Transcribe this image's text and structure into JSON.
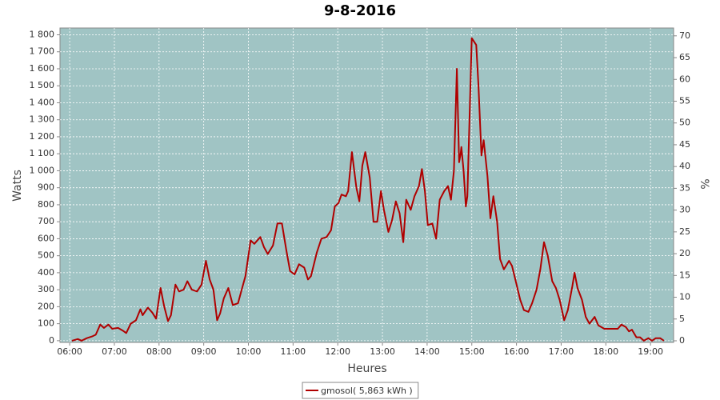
{
  "chart_data": {
    "type": "line",
    "title": "9-8-2016",
    "x_label": "Heures",
    "y_label": "Watts",
    "y2_label": "%",
    "xlim": [
      "05:47",
      "19:31"
    ],
    "xticks": [
      "06:00",
      "07:00",
      "08:00",
      "09:00",
      "10:00",
      "11:00",
      "12:00",
      "13:00",
      "14:00",
      "15:00",
      "16:00",
      "17:00",
      "18:00",
      "19:00"
    ],
    "ylim": [
      -10,
      1840
    ],
    "yticks": [
      0,
      100,
      200,
      300,
      400,
      500,
      600,
      700,
      800,
      900,
      {
        "value": 1000,
        "label": "1 000"
      },
      {
        "value": 1100,
        "label": "1 100"
      },
      {
        "value": 1200,
        "label": "1 200"
      },
      {
        "value": 1300,
        "label": "1 300"
      },
      {
        "value": 1400,
        "label": "1 400"
      },
      {
        "value": 1500,
        "label": "1 500"
      },
      {
        "value": 1600,
        "label": "1 600"
      },
      {
        "value": 1700,
        "label": "1 700"
      },
      {
        "value": 1800,
        "label": "1 800"
      }
    ],
    "y2lim": [
      -0.37,
      71.8
    ],
    "y2ticks": [
      0,
      5,
      10,
      15,
      20,
      25,
      30,
      35,
      40,
      45,
      50,
      55,
      60,
      65,
      70
    ],
    "grid": true,
    "background": "#a0c4c4",
    "legend": "bottom",
    "x": [
      "06:03",
      "06:11",
      "06:16",
      "06:23",
      "06:30",
      "06:35",
      "06:41",
      "06:46",
      "06:52",
      "06:57",
      "07:05",
      "07:11",
      "07:16",
      "07:22",
      "07:29",
      "07:35",
      "07:38",
      "07:45",
      "07:51",
      "07:56",
      "08:02",
      "08:07",
      "08:12",
      "08:16",
      "08:22",
      "08:27",
      "08:33",
      "08:38",
      "08:44",
      "08:51",
      "08:57",
      "09:03",
      "09:08",
      "09:13",
      "09:18",
      "09:22",
      "09:27",
      "09:33",
      "09:39",
      "09:46",
      "09:51",
      "09:56",
      "10:03",
      "10:08",
      "10:16",
      "10:21",
      "10:26",
      "10:33",
      "10:39",
      "10:45",
      "10:51",
      "10:56",
      "11:02",
      "11:08",
      "11:15",
      "11:20",
      "11:24",
      "11:32",
      "11:38",
      "11:45",
      "11:51",
      "11:56",
      "12:01",
      "12:05",
      "12:11",
      "12:14",
      "12:19",
      "12:25",
      "12:29",
      "12:33",
      "12:37",
      "12:43",
      "12:48",
      "12:53",
      "12:58",
      "13:02",
      "13:08",
      "13:13",
      "13:18",
      "13:23",
      "13:28",
      "13:32",
      "13:38",
      "13:43",
      "13:49",
      "13:53",
      "13:57",
      "14:01",
      "14:07",
      "14:12",
      "14:17",
      "14:23",
      "14:28",
      "14:32",
      "14:36",
      "14:40",
      "14:43",
      "14:45",
      "14:46",
      "14:49",
      "14:52",
      "14:54",
      "15:00",
      "15:06",
      "15:09",
      "15:13",
      "15:16",
      "15:21",
      "15:25",
      "15:29",
      "15:34",
      "15:38",
      "15:43",
      "15:50",
      "15:54",
      "15:59",
      "16:05",
      "16:10",
      "16:16",
      "16:21",
      "16:27",
      "16:32",
      "16:37",
      "16:42",
      "16:48",
      "16:53",
      "16:58",
      "17:04",
      "17:09",
      "17:15",
      "17:18",
      "17:22",
      "17:28",
      "17:33",
      "17:38",
      "17:45",
      "17:50",
      "17:58",
      "18:08",
      "18:16",
      "18:21",
      "18:27",
      "18:31",
      "18:35",
      "18:41",
      "18:46",
      "18:51",
      "18:57",
      "19:02",
      "19:07",
      "19:13",
      "19:18"
    ],
    "series": [
      {
        "name": "gmosol( 5,863 kWh )",
        "color": "#b00000",
        "values": [
          0,
          10,
          0,
          15,
          25,
          35,
          95,
          75,
          95,
          70,
          75,
          60,
          45,
          100,
          120,
          185,
          150,
          195,
          165,
          130,
          310,
          200,
          115,
          150,
          330,
          290,
          300,
          350,
          300,
          290,
          330,
          470,
          360,
          300,
          120,
          160,
          250,
          310,
          210,
          220,
          300,
          380,
          590,
          570,
          610,
          550,
          510,
          560,
          690,
          690,
          530,
          410,
          390,
          450,
          430,
          360,
          380,
          520,
          600,
          610,
          650,
          790,
          810,
          860,
          850,
          880,
          1110,
          900,
          820,
          1030,
          1110,
          960,
          700,
          700,
          880,
          770,
          640,
          710,
          820,
          750,
          580,
          830,
          770,
          850,
          910,
          1010,
          880,
          680,
          690,
          600,
          830,
          880,
          910,
          830,
          1000,
          1600,
          1050,
          1100,
          1140,
          1000,
          790,
          850,
          1780,
          1740,
          1500,
          1090,
          1180,
          970,
          720,
          850,
          700,
          480,
          420,
          470,
          440,
          350,
          240,
          180,
          170,
          220,
          300,
          420,
          580,
          500,
          350,
          310,
          240,
          120,
          180,
          320,
          400,
          310,
          240,
          140,
          100,
          140,
          90,
          70,
          70,
          70,
          95,
          80,
          55,
          65,
          20,
          20,
          0,
          15,
          0,
          15,
          15,
          0
        ]
      }
    ]
  }
}
